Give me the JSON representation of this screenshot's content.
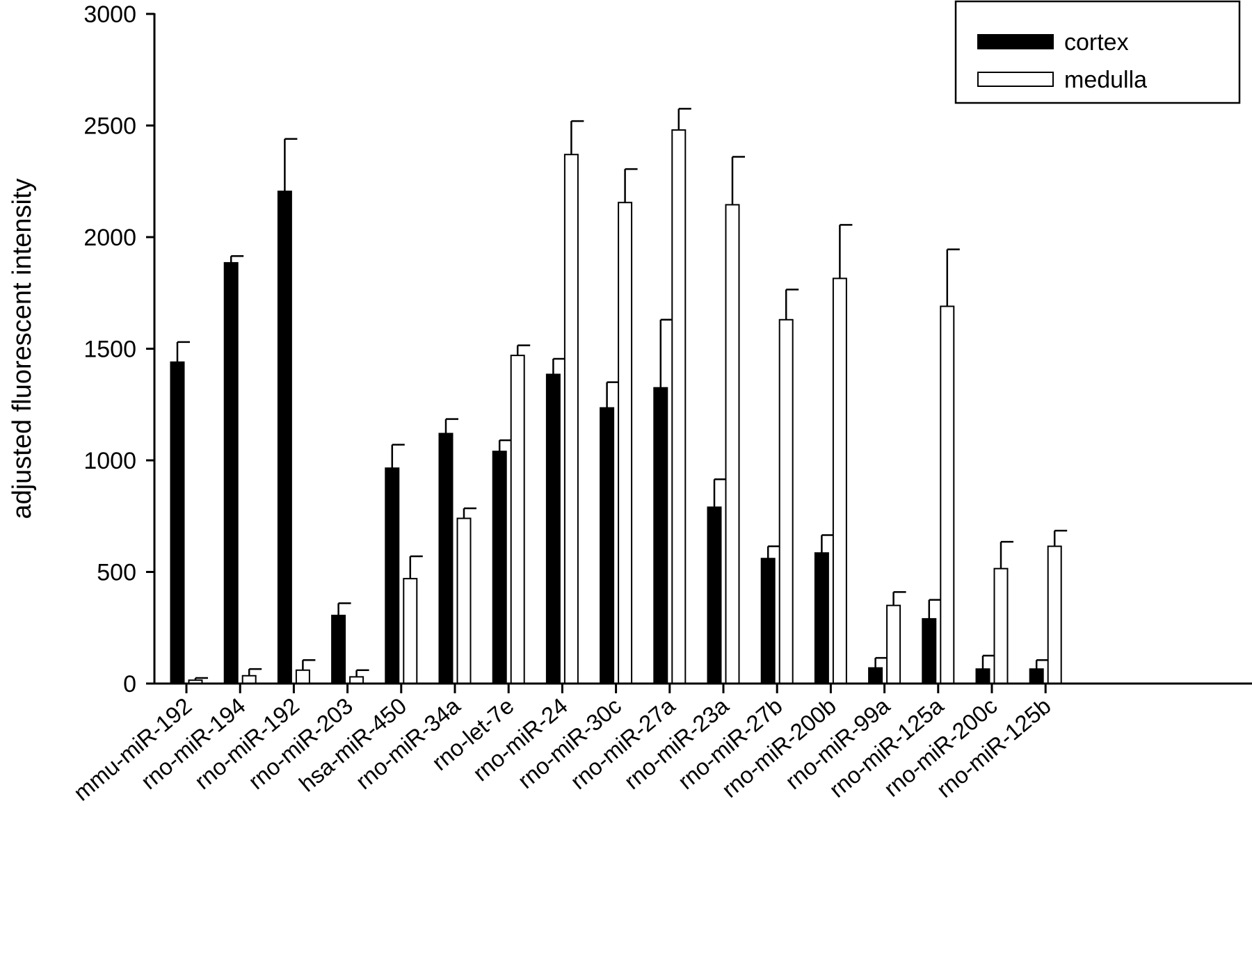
{
  "chart_data": {
    "type": "bar",
    "title": "",
    "xlabel": "",
    "ylabel": "adjusted fluorescent intensity",
    "ylim": [
      0,
      3000
    ],
    "yticks": [
      0,
      500,
      1000,
      1500,
      2000,
      2500,
      3000
    ],
    "grid": false,
    "legend_position": "top-right",
    "categories": [
      "mmu-miR-192",
      "rno-miR-194",
      "rno-miR-192",
      "rno-miR-203",
      "hsa-miR-450",
      "rno-miR-34a",
      "rno-let-7e",
      "rno-miR-24",
      "rno-miR-30c",
      "rno-miR-27a",
      "rno-miR-23a",
      "rno-miR-27b",
      "rno-miR-200b",
      "rno-miR-99a",
      "rno-miR-125a",
      "rno-miR-200c",
      "rno-miR-125b"
    ],
    "series": [
      {
        "name": "cortex",
        "color": "#000000",
        "values": [
          1440,
          1885,
          2205,
          305,
          965,
          1120,
          1040,
          1385,
          1235,
          1325,
          790,
          560,
          585,
          70,
          290,
          65,
          65
        ],
        "errors": [
          90,
          30,
          235,
          55,
          105,
          65,
          50,
          70,
          115,
          305,
          125,
          55,
          80,
          45,
          85,
          60,
          40
        ]
      },
      {
        "name": "medulla",
        "color": "#ffffff",
        "values": [
          15,
          35,
          60,
          30,
          470,
          740,
          1470,
          2370,
          2155,
          2480,
          2145,
          1630,
          1815,
          350,
          1690,
          515,
          615
        ],
        "errors": [
          10,
          30,
          45,
          30,
          100,
          45,
          45,
          150,
          150,
          95,
          215,
          135,
          240,
          60,
          255,
          120,
          70
        ]
      }
    ]
  }
}
